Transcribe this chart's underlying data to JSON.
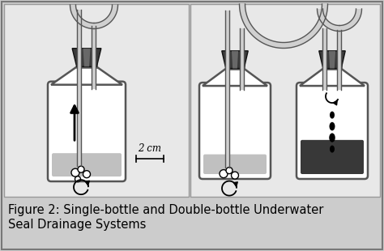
{
  "bg_color": "#cccccc",
  "panel_bg": "#e8e8e8",
  "bottle_fill_light": "#c0c0c0",
  "bottle_fill_dark": "#383838",
  "stopper_dark": "#3a3a3a",
  "stopper_light": "#888888",
  "tube_fill": "#d0d0d0",
  "tube_border": "#555555",
  "border_color": "#555555",
  "white": "#ffffff",
  "black": "#000000",
  "caption_line1": "Figure 2: Single-bottle and Double-bottle Underwater",
  "caption_line2": "Seal Drainage Systems",
  "annotation_2cm": "2 cm",
  "caption_fontsize": 10.5,
  "annotation_fontsize": 8.5,
  "fig_w": 4.74,
  "fig_h": 3.1,
  "dpi": 100
}
